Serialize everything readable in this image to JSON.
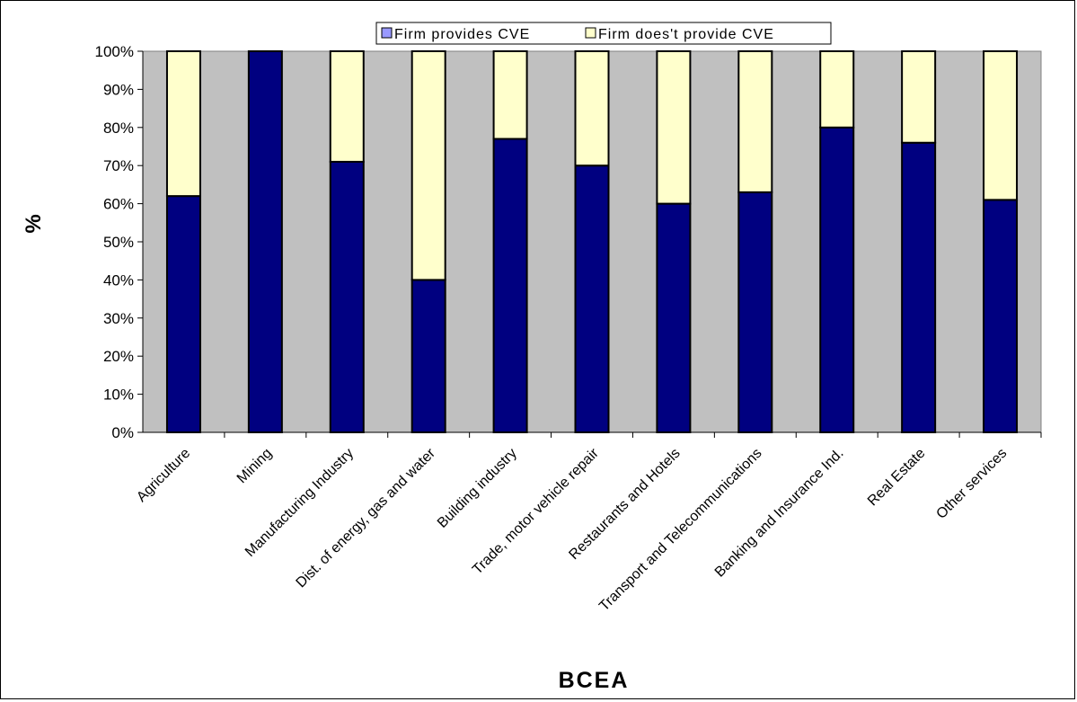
{
  "chart_data": {
    "type": "bar",
    "stacked": true,
    "percent": true,
    "categories": [
      "Agriculture",
      "Mining",
      "Manufacturing Industry",
      "Dist. of energy, gas and water",
      "Building industry",
      "Trade, motor vehicle repair",
      "Restaurants and Hotels",
      "Transport and Telecommunications",
      "Banking and Insurance Ind.",
      "Real Estate",
      "Other services"
    ],
    "series": [
      {
        "name": "Firm provides CVE",
        "color": "#000080",
        "values": [
          62,
          100,
          71,
          40,
          77,
          70,
          60,
          63,
          80,
          76,
          61
        ]
      },
      {
        "name": "Firm does't provide CVE",
        "color": "#FFFFCC",
        "values": [
          38,
          0,
          29,
          60,
          23,
          30,
          40,
          37,
          20,
          24,
          39
        ]
      }
    ],
    "xlabel": "BCEA",
    "ylabel": "%",
    "ylim": [
      0,
      100
    ],
    "yticks": [
      "0%",
      "10%",
      "20%",
      "30%",
      "40%",
      "50%",
      "60%",
      "70%",
      "80%",
      "90%",
      "100%"
    ],
    "plot_background": "#C0C0C0",
    "legend_position": "top"
  }
}
